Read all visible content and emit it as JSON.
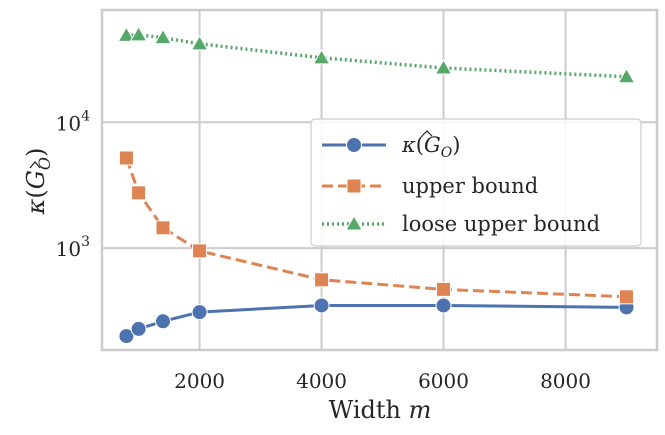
{
  "chart_data": {
    "type": "line",
    "title": "",
    "xlabel": "Width m",
    "xlabel_text": "Width ",
    "xlabel_var": "m",
    "ylabel": "κ(Ĝ_O)",
    "ylabel_kappa": "κ",
    "ylabel_G": "G",
    "ylabel_sub": "O",
    "xscale": "linear",
    "yscale": "log",
    "xlim": [
      400,
      9500
    ],
    "ylim": [
      155,
      78000
    ],
    "xticks": [
      2000,
      4000,
      6000,
      8000
    ],
    "xtick_labels": [
      "2000",
      "4000",
      "6000",
      "8000"
    ],
    "yticks": [
      1000,
      10000
    ],
    "ytick_labels": [
      {
        "base": "10",
        "exp": "3"
      },
      {
        "base": "10",
        "exp": "4"
      }
    ],
    "grid": true,
    "legend_position": "center-right",
    "x": [
      800,
      1000,
      1400,
      2000,
      4000,
      6000,
      9000
    ],
    "series": [
      {
        "name": "κ(Ĝ_O)",
        "legend_kappa": "κ",
        "legend_G": "G",
        "legend_sub": "O",
        "color": "#4c72b0",
        "marker": "circle",
        "linestyle": "solid",
        "values": [
          200,
          228,
          262,
          310,
          350,
          350,
          338
        ]
      },
      {
        "name": "upper bound",
        "color": "#dd8452",
        "marker": "square",
        "linestyle": "dashed",
        "values": [
          5200,
          2750,
          1450,
          950,
          560,
          470,
          410
        ]
      },
      {
        "name": "loose upper bound",
        "color": "#55a868",
        "marker": "triangle",
        "linestyle": "dotted",
        "values": [
          49000,
          49500,
          47000,
          42000,
          32500,
          27000,
          23000
        ]
      }
    ]
  }
}
